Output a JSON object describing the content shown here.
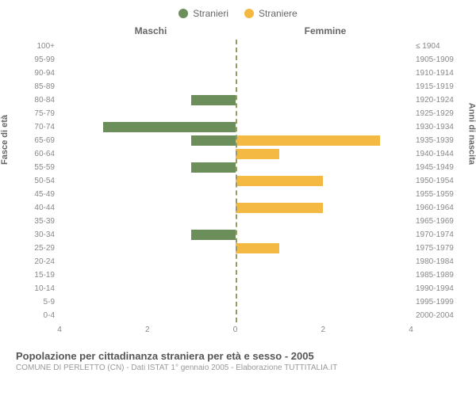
{
  "chart": {
    "type": "population-pyramid",
    "legend": [
      {
        "label": "Stranieri",
        "color": "#6b8e5a"
      },
      {
        "label": "Straniere",
        "color": "#f4b942"
      }
    ],
    "header_left": "Maschi",
    "header_right": "Femmine",
    "y_title_left": "Fasce di età",
    "y_title_right": "Anni di nascita",
    "x_max": 4,
    "x_ticks_left": [
      4,
      2,
      0
    ],
    "x_ticks_right": [
      0,
      2,
      4
    ],
    "bar_colors": {
      "male": "#6b8e5a",
      "female": "#f4b942"
    },
    "center_line_color": "#999966",
    "background": "#ffffff",
    "rows": [
      {
        "age": "100+",
        "birth": "≤ 1904",
        "m": 0,
        "f": 0
      },
      {
        "age": "95-99",
        "birth": "1905-1909",
        "m": 0,
        "f": 0
      },
      {
        "age": "90-94",
        "birth": "1910-1914",
        "m": 0,
        "f": 0
      },
      {
        "age": "85-89",
        "birth": "1915-1919",
        "m": 0,
        "f": 0
      },
      {
        "age": "80-84",
        "birth": "1920-1924",
        "m": 1,
        "f": 0
      },
      {
        "age": "75-79",
        "birth": "1925-1929",
        "m": 0,
        "f": 0
      },
      {
        "age": "70-74",
        "birth": "1930-1934",
        "m": 3,
        "f": 0
      },
      {
        "age": "65-69",
        "birth": "1935-1939",
        "m": 1,
        "f": 3.3
      },
      {
        "age": "60-64",
        "birth": "1940-1944",
        "m": 0,
        "f": 1
      },
      {
        "age": "55-59",
        "birth": "1945-1949",
        "m": 1,
        "f": 0
      },
      {
        "age": "50-54",
        "birth": "1950-1954",
        "m": 0,
        "f": 2
      },
      {
        "age": "45-49",
        "birth": "1955-1959",
        "m": 0,
        "f": 0
      },
      {
        "age": "40-44",
        "birth": "1960-1964",
        "m": 0,
        "f": 2
      },
      {
        "age": "35-39",
        "birth": "1965-1969",
        "m": 0,
        "f": 0
      },
      {
        "age": "30-34",
        "birth": "1970-1974",
        "m": 1,
        "f": 0
      },
      {
        "age": "25-29",
        "birth": "1975-1979",
        "m": 0,
        "f": 1
      },
      {
        "age": "20-24",
        "birth": "1980-1984",
        "m": 0,
        "f": 0
      },
      {
        "age": "15-19",
        "birth": "1985-1989",
        "m": 0,
        "f": 0
      },
      {
        "age": "10-14",
        "birth": "1990-1994",
        "m": 0,
        "f": 0
      },
      {
        "age": "5-9",
        "birth": "1995-1999",
        "m": 0,
        "f": 0
      },
      {
        "age": "0-4",
        "birth": "2000-2004",
        "m": 0,
        "f": 0
      }
    ]
  },
  "footer": {
    "title": "Popolazione per cittadinanza straniera per età e sesso - 2005",
    "subtitle": "COMUNE DI PERLETTO (CN) - Dati ISTAT 1° gennaio 2005 - Elaborazione TUTTITALIA.IT"
  }
}
